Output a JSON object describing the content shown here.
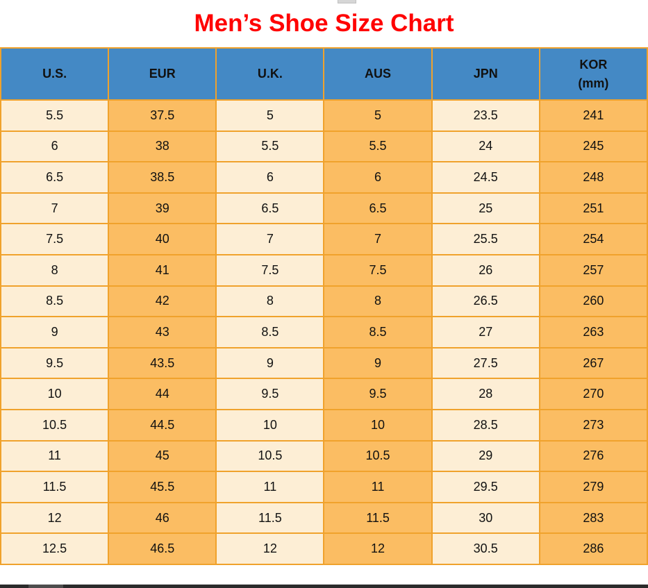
{
  "title": "Men’s Shoe Size Chart",
  "chart_data": {
    "type": "table",
    "title": "Men’s Shoe Size Chart",
    "columns": [
      "U.S.",
      "EUR",
      "U.K.",
      "AUS",
      "JPN",
      "KOR (mm)"
    ],
    "header": [
      {
        "label": "U.S.",
        "sub": ""
      },
      {
        "label": "EUR",
        "sub": ""
      },
      {
        "label": "U.K.",
        "sub": ""
      },
      {
        "label": "AUS",
        "sub": ""
      },
      {
        "label": "JPN",
        "sub": ""
      },
      {
        "label": "KOR",
        "sub": "(mm)"
      }
    ],
    "rows": [
      [
        5.5,
        37.5,
        5,
        5,
        23.5,
        241
      ],
      [
        6,
        38,
        5.5,
        5.5,
        24,
        245
      ],
      [
        6.5,
        38.5,
        6,
        6,
        24.5,
        248
      ],
      [
        7,
        39,
        6.5,
        6.5,
        25,
        251
      ],
      [
        7.5,
        40,
        7,
        7,
        25.5,
        254
      ],
      [
        8,
        41,
        7.5,
        7.5,
        26,
        257
      ],
      [
        8.5,
        42,
        8,
        8,
        26.5,
        260
      ],
      [
        9,
        43,
        8.5,
        8.5,
        27,
        263
      ],
      [
        9.5,
        43.5,
        9,
        9,
        27.5,
        267
      ],
      [
        10,
        44,
        9.5,
        9.5,
        28,
        270
      ],
      [
        10.5,
        44.5,
        10,
        10,
        28.5,
        273
      ],
      [
        11,
        45,
        10.5,
        10.5,
        29,
        276
      ],
      [
        11.5,
        45.5,
        11,
        11,
        29.5,
        279
      ],
      [
        12,
        46,
        11.5,
        11.5,
        30,
        283
      ],
      [
        12.5,
        46.5,
        12,
        12,
        30.5,
        286
      ]
    ],
    "layout": {
      "grid": true,
      "header_position": "top",
      "column_fill_alternation": [
        "light",
        "orange"
      ]
    }
  },
  "colors": {
    "title": "#ff0000",
    "header_bg": "#4489c5",
    "header_text": "#111111",
    "column_light": "#fdeed5",
    "column_orange": "#fbbd63",
    "grid_border": "#f0a22c",
    "cell_text": "#111111",
    "scrollbar_track": "#2b2b2b",
    "scrollbar_thumb": "#4d4d4d"
  }
}
